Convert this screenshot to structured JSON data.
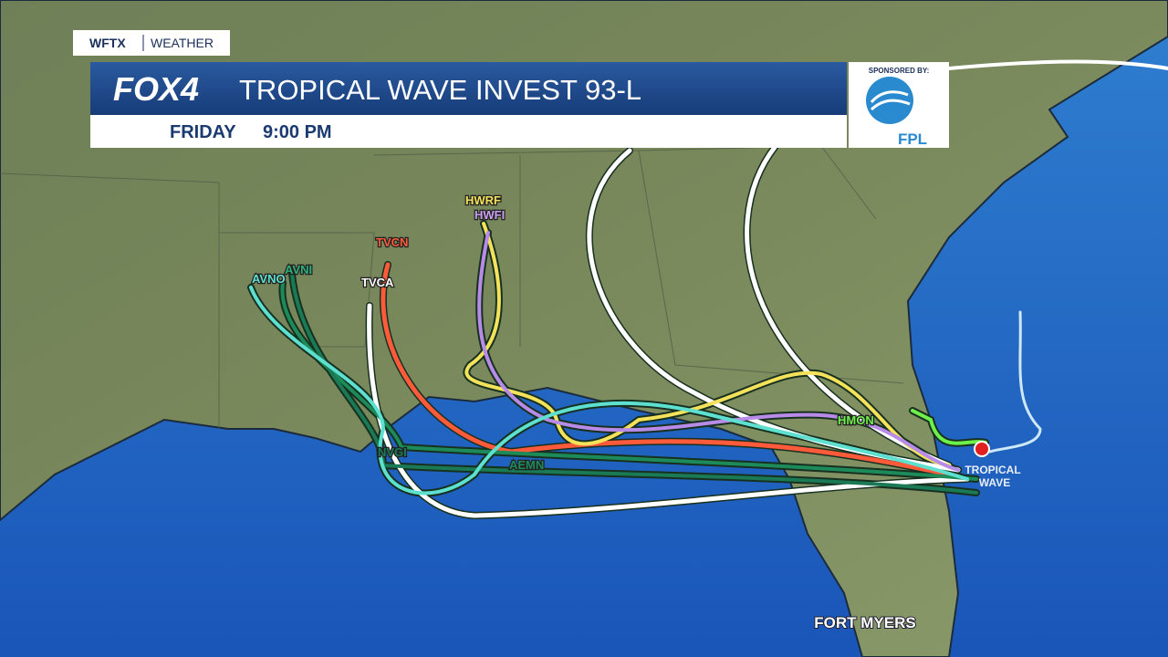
{
  "header": {
    "station": "WFTX",
    "section": "WEATHER",
    "logo": "FOX4",
    "title": "TROPICAL WAVE INVEST 93-L",
    "day": "FRIDAY",
    "time": "9:00 PM"
  },
  "sponsor": {
    "label": "SPONSORED BY:",
    "name": "FPL"
  },
  "map": {
    "models": [
      "HWRF",
      "HWFI",
      "TVCN",
      "TVCA",
      "AVNO",
      "AVNI",
      "HMON",
      "AEMN",
      "NVGI"
    ],
    "storm_label": [
      "TROPICAL",
      "WAVE"
    ],
    "city": "FORT MYERS"
  }
}
